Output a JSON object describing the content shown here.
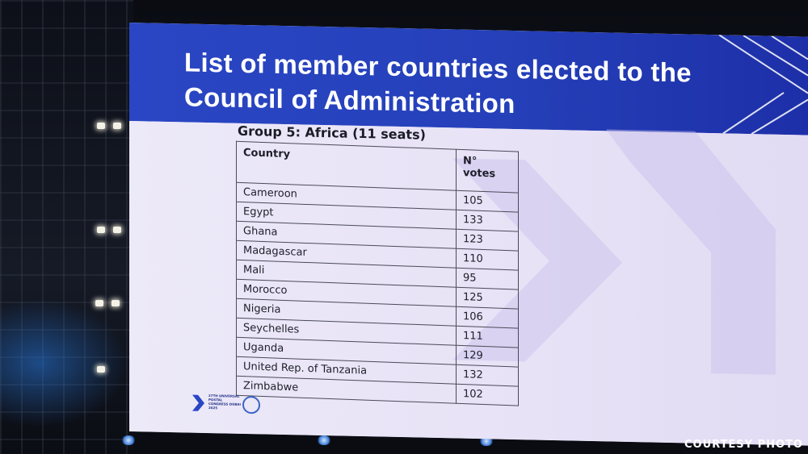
{
  "slide": {
    "title": "List of member countries elected to the Council of Administration",
    "group_heading": "Group 5: Africa (11 seats)",
    "table": {
      "headers": {
        "country": "Country",
        "votes": "N° votes"
      },
      "rows": [
        {
          "country": "Cameroon",
          "votes": "105"
        },
        {
          "country": "Egypt",
          "votes": "133"
        },
        {
          "country": "Ghana",
          "votes": "123"
        },
        {
          "country": "Madagascar",
          "votes": "110"
        },
        {
          "country": "Mali",
          "votes": "95"
        },
        {
          "country": "Morocco",
          "votes": "125"
        },
        {
          "country": "Nigeria",
          "votes": "106"
        },
        {
          "country": "Seychelles",
          "votes": "111"
        },
        {
          "country": "Uganda",
          "votes": "129"
        },
        {
          "country": "United Rep. of Tanzania",
          "votes": "132"
        },
        {
          "country": "Zimbabwe",
          "votes": "102"
        }
      ]
    },
    "footer": {
      "logo_icon": "upu-congress-chevron-logo",
      "logo_text": "27TH UNIVERSAL POSTAL CONGRESS DUBAI 2025",
      "emblem_icon": "un-emblem"
    },
    "colors": {
      "header_blue": "#2a46c4",
      "body_lavender": "#eae6f7",
      "text_dark": "#1e1e2a"
    }
  },
  "credit": "COURTESY PHOTO"
}
